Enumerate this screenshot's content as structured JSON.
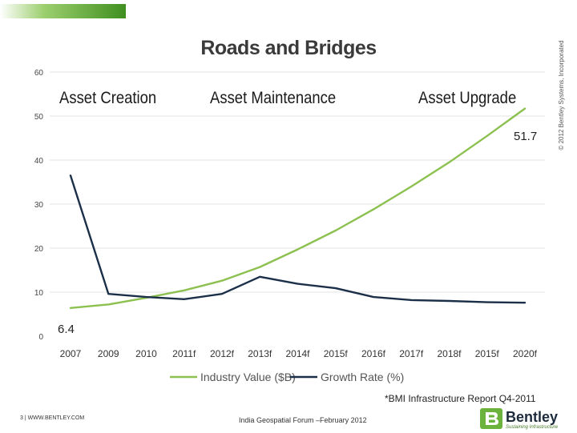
{
  "copyright": "© 2012 Bentley Systems, Incorporated",
  "phases": [
    "Asset Creation",
    "Asset Maintenance",
    "Asset Upgrade"
  ],
  "source_note": "*BMI Infrastructure Report Q4-2011",
  "footer": {
    "page_url": "3 | WWW.BENTLEY.COM",
    "event": "India Geospatial Forum –February 2012"
  },
  "logo": {
    "name": "Bentley",
    "tagline": "Sustaining Infrastructure"
  },
  "colors": {
    "brand_green": "#6bb33c",
    "industry_line": "#8cc04f",
    "growth_line": "#1b3048"
  },
  "chart_data": {
    "type": "line",
    "title": "Roads and Bridges",
    "categories": [
      "2007",
      "2009",
      "2010",
      "2011f",
      "2012f",
      "2013f",
      "2014f",
      "2015f",
      "2016f",
      "2017f",
      "2018f",
      "2015f",
      "2020f"
    ],
    "ylim": [
      0,
      60
    ],
    "yticks": [
      0,
      10,
      20,
      30,
      40,
      50,
      60
    ],
    "grid": true,
    "legend": "bottom",
    "series": [
      {
        "name": "Industry Value ($B)",
        "values": [
          6.4,
          7.2,
          8.7,
          10.4,
          12.6,
          15.7,
          19.7,
          24.0,
          28.8,
          34.0,
          39.5,
          45.5,
          51.7
        ]
      },
      {
        "name": "Growth Rate (%)",
        "values": [
          36.5,
          9.6,
          8.9,
          8.4,
          9.6,
          13.5,
          11.9,
          10.9,
          8.9,
          8.2,
          8.0,
          7.7,
          7.6
        ]
      }
    ],
    "annotations": [
      "51.7",
      "6.4"
    ]
  }
}
